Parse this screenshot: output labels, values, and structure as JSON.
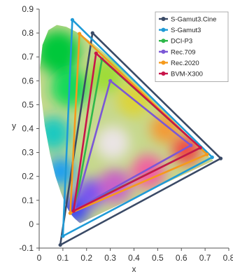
{
  "chart_data": {
    "type": "line",
    "title": "",
    "xlabel": "x",
    "ylabel": "y",
    "xlim": [
      0,
      0.8
    ],
    "ylim": [
      -0.1,
      0.9
    ],
    "x_ticks": [
      "0",
      "0.1",
      "0.2",
      "0.3",
      "0.4",
      "0.5",
      "0.6",
      "0.7",
      "0.8"
    ],
    "y_ticks": [
      "-0.1",
      "0",
      "0.1",
      "0.2",
      "0.3",
      "0.4",
      "0.5",
      "0.6",
      "0.7",
      "0.8",
      "0.9"
    ],
    "grid": false,
    "legend_position": "top-right",
    "series": [
      {
        "name": "S-Gamut3.Cine",
        "color": "#3a4a66",
        "points": [
          [
            0.766,
            0.275
          ],
          [
            0.225,
            0.8
          ],
          [
            0.089,
            -0.087
          ]
        ]
      },
      {
        "name": "S-Gamut3",
        "color": "#1f9ad6",
        "points": [
          [
            0.73,
            0.28
          ],
          [
            0.14,
            0.855
          ],
          [
            0.1,
            -0.05
          ]
        ]
      },
      {
        "name": "DCI-P3",
        "color": "#2fb84a",
        "points": [
          [
            0.68,
            0.32
          ],
          [
            0.265,
            0.69
          ],
          [
            0.15,
            0.06
          ]
        ]
      },
      {
        "name": "Rec.709",
        "color": "#7b57d6",
        "points": [
          [
            0.64,
            0.33
          ],
          [
            0.3,
            0.6
          ],
          [
            0.15,
            0.06
          ]
        ]
      },
      {
        "name": "Rec.2020",
        "color": "#f59a1c",
        "points": [
          [
            0.708,
            0.292
          ],
          [
            0.17,
            0.797
          ],
          [
            0.131,
            0.046
          ]
        ]
      },
      {
        "name": "BVM-X300",
        "color": "#c8154a",
        "points": [
          [
            0.68,
            0.32
          ],
          [
            0.24,
            0.715
          ],
          [
            0.145,
            0.055
          ]
        ]
      }
    ],
    "spectral_locus": {
      "points": [
        [
          0.1741,
          0.005
        ],
        [
          0.1738,
          0.0049
        ],
        [
          0.1736,
          0.0049
        ],
        [
          0.1733,
          0.0048
        ],
        [
          0.173,
          0.0048
        ],
        [
          0.1726,
          0.0048
        ],
        [
          0.1721,
          0.0048
        ],
        [
          0.1714,
          0.0051
        ],
        [
          0.1703,
          0.0058
        ],
        [
          0.1689,
          0.0069
        ],
        [
          0.1669,
          0.0086
        ],
        [
          0.1644,
          0.0109
        ],
        [
          0.1611,
          0.0138
        ],
        [
          0.1566,
          0.0177
        ],
        [
          0.151,
          0.0227
        ],
        [
          0.144,
          0.0297
        ],
        [
          0.1355,
          0.0399
        ],
        [
          0.1241,
          0.0578
        ],
        [
          0.1096,
          0.0868
        ],
        [
          0.0913,
          0.1327
        ],
        [
          0.0687,
          0.2007
        ],
        [
          0.0454,
          0.295
        ],
        [
          0.0235,
          0.4127
        ],
        [
          0.0082,
          0.5384
        ],
        [
          0.0039,
          0.6548
        ],
        [
          0.0139,
          0.7502
        ],
        [
          0.0389,
          0.812
        ],
        [
          0.0743,
          0.8338
        ],
        [
          0.1142,
          0.8262
        ],
        [
          0.1547,
          0.8059
        ],
        [
          0.1929,
          0.7816
        ],
        [
          0.2296,
          0.7543
        ],
        [
          0.2658,
          0.7243
        ],
        [
          0.3016,
          0.6923
        ],
        [
          0.3373,
          0.6589
        ],
        [
          0.3731,
          0.6245
        ],
        [
          0.4087,
          0.5896
        ],
        [
          0.4441,
          0.5547
        ],
        [
          0.4788,
          0.5202
        ],
        [
          0.5125,
          0.4866
        ],
        [
          0.5448,
          0.4544
        ],
        [
          0.5752,
          0.4242
        ],
        [
          0.6029,
          0.3965
        ],
        [
          0.627,
          0.3725
        ],
        [
          0.6482,
          0.3514
        ],
        [
          0.6658,
          0.334
        ],
        [
          0.6801,
          0.3197
        ],
        [
          0.6915,
          0.3083
        ],
        [
          0.7006,
          0.2993
        ],
        [
          0.7079,
          0.292
        ],
        [
          0.714,
          0.2859
        ],
        [
          0.719,
          0.2809
        ],
        [
          0.723,
          0.277
        ],
        [
          0.726,
          0.274
        ],
        [
          0.7283,
          0.2717
        ],
        [
          0.73,
          0.27
        ],
        [
          0.7311,
          0.2689
        ],
        [
          0.732,
          0.268
        ],
        [
          0.7327,
          0.2673
        ],
        [
          0.7334,
          0.2666
        ],
        [
          0.734,
          0.266
        ],
        [
          0.7344,
          0.2656
        ],
        [
          0.7346,
          0.2654
        ],
        [
          0.7347,
          0.2653
        ]
      ]
    }
  }
}
